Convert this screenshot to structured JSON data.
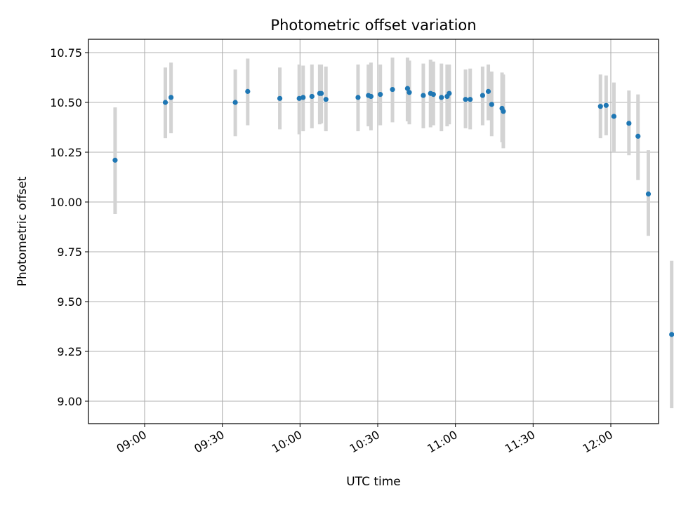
{
  "chart_data": {
    "type": "scatter",
    "title": "Photometric offset variation",
    "xlabel": "UTC time",
    "ylabel": "Photometric offset",
    "x_unit": "minutes after midnight UTC",
    "xlim": [
      517.5,
      737.5
    ],
    "ylim": [
      8.885,
      10.815
    ],
    "x_ticks": [
      {
        "value": 540,
        "label": "09:00"
      },
      {
        "value": 570,
        "label": "09:30"
      },
      {
        "value": 600,
        "label": "10:00"
      },
      {
        "value": 630,
        "label": "10:30"
      },
      {
        "value": 660,
        "label": "11:00"
      },
      {
        "value": 690,
        "label": "11:30"
      },
      {
        "value": 720,
        "label": "12:00"
      }
    ],
    "y_ticks": [
      {
        "value": 9.0,
        "label": "9.00"
      },
      {
        "value": 9.25,
        "label": "9.25"
      },
      {
        "value": 9.5,
        "label": "9.50"
      },
      {
        "value": 9.75,
        "label": "9.75"
      },
      {
        "value": 10.0,
        "label": "10.00"
      },
      {
        "value": 10.25,
        "label": "10.25"
      },
      {
        "value": 10.5,
        "label": "10.50"
      },
      {
        "value": 10.75,
        "label": "10.75"
      }
    ],
    "grid": true,
    "colors": {
      "points": "#1f77b4",
      "error_bars": "#d3d3d3"
    },
    "points": [
      {
        "x": 528.6,
        "y": 10.21,
        "y_low": 9.94,
        "y_high": 10.475
      },
      {
        "x": 548.0,
        "y": 10.5,
        "y_low": 10.32,
        "y_high": 10.675
      },
      {
        "x": 550.2,
        "y": 10.525,
        "y_low": 10.345,
        "y_high": 10.7
      },
      {
        "x": 575.0,
        "y": 10.5,
        "y_low": 10.33,
        "y_high": 10.665
      },
      {
        "x": 579.8,
        "y": 10.555,
        "y_low": 10.385,
        "y_high": 10.72
      },
      {
        "x": 592.2,
        "y": 10.52,
        "y_low": 10.365,
        "y_high": 10.675
      },
      {
        "x": 599.7,
        "y": 10.52,
        "y_low": 10.34,
        "y_high": 10.69
      },
      {
        "x": 601.2,
        "y": 10.525,
        "y_low": 10.355,
        "y_high": 10.685
      },
      {
        "x": 604.6,
        "y": 10.53,
        "y_low": 10.37,
        "y_high": 10.69
      },
      {
        "x": 607.6,
        "y": 10.545,
        "y_low": 10.39,
        "y_high": 10.69
      },
      {
        "x": 608.2,
        "y": 10.545,
        "y_low": 10.395,
        "y_high": 10.69
      },
      {
        "x": 610.0,
        "y": 10.515,
        "y_low": 10.355,
        "y_high": 10.68
      },
      {
        "x": 622.4,
        "y": 10.525,
        "y_low": 10.355,
        "y_high": 10.69
      },
      {
        "x": 626.4,
        "y": 10.535,
        "y_low": 10.38,
        "y_high": 10.69
      },
      {
        "x": 627.4,
        "y": 10.53,
        "y_low": 10.36,
        "y_high": 10.7
      },
      {
        "x": 631.0,
        "y": 10.54,
        "y_low": 10.385,
        "y_high": 10.69
      },
      {
        "x": 635.7,
        "y": 10.565,
        "y_low": 10.4,
        "y_high": 10.725
      },
      {
        "x": 641.5,
        "y": 10.57,
        "y_low": 10.405,
        "y_high": 10.725
      },
      {
        "x": 642.2,
        "y": 10.55,
        "y_low": 10.39,
        "y_high": 10.71
      },
      {
        "x": 647.6,
        "y": 10.535,
        "y_low": 10.37,
        "y_high": 10.695
      },
      {
        "x": 650.4,
        "y": 10.545,
        "y_low": 10.375,
        "y_high": 10.715
      },
      {
        "x": 651.5,
        "y": 10.54,
        "y_low": 10.385,
        "y_high": 10.705
      },
      {
        "x": 654.6,
        "y": 10.525,
        "y_low": 10.355,
        "y_high": 10.695
      },
      {
        "x": 656.8,
        "y": 10.53,
        "y_low": 10.38,
        "y_high": 10.69
      },
      {
        "x": 657.6,
        "y": 10.545,
        "y_low": 10.39,
        "y_high": 10.69
      },
      {
        "x": 663.9,
        "y": 10.515,
        "y_low": 10.37,
        "y_high": 10.665
      },
      {
        "x": 665.7,
        "y": 10.515,
        "y_low": 10.365,
        "y_high": 10.67
      },
      {
        "x": 670.5,
        "y": 10.535,
        "y_low": 10.385,
        "y_high": 10.68
      },
      {
        "x": 672.7,
        "y": 10.555,
        "y_low": 10.41,
        "y_high": 10.69
      },
      {
        "x": 674.0,
        "y": 10.49,
        "y_low": 10.33,
        "y_high": 10.655
      },
      {
        "x": 678.0,
        "y": 10.47,
        "y_low": 10.3,
        "y_high": 10.65
      },
      {
        "x": 678.5,
        "y": 10.455,
        "y_low": 10.27,
        "y_high": 10.64
      },
      {
        "x": 716.0,
        "y": 10.48,
        "y_low": 10.32,
        "y_high": 10.64
      },
      {
        "x": 718.2,
        "y": 10.485,
        "y_low": 10.335,
        "y_high": 10.635
      },
      {
        "x": 721.2,
        "y": 10.43,
        "y_low": 10.25,
        "y_high": 10.6
      },
      {
        "x": 727.0,
        "y": 10.395,
        "y_low": 10.235,
        "y_high": 10.56
      },
      {
        "x": 730.5,
        "y": 10.33,
        "y_low": 10.11,
        "y_high": 10.54
      },
      {
        "x": 734.5,
        "y": 10.04,
        "y_low": 9.83,
        "y_high": 10.26
      },
      {
        "x": 743.5,
        "y": 9.335,
        "y_low": 8.965,
        "y_high": 9.705
      }
    ]
  }
}
